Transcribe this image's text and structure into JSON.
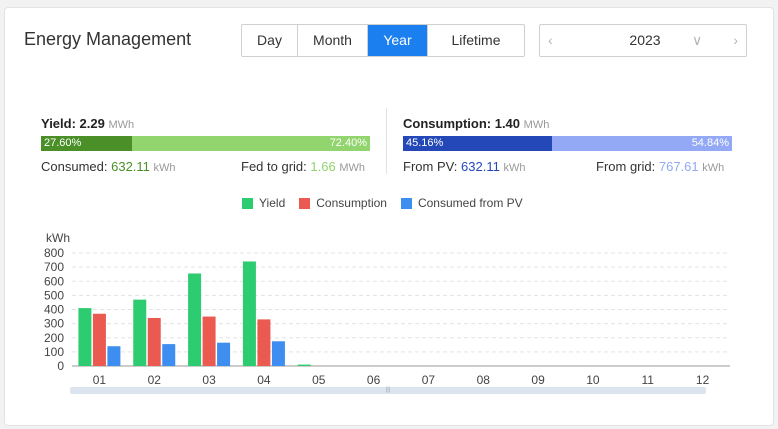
{
  "header": {
    "title": "Energy Management",
    "tabs": [
      {
        "label": "Day",
        "active": false
      },
      {
        "label": "Month",
        "active": false
      },
      {
        "label": "Year",
        "active": true
      },
      {
        "label": "Lifetime",
        "active": false
      }
    ],
    "year_picker": {
      "value": "2023",
      "prev_icon": "chevron-left-icon",
      "next_icon": "chevron-right-icon",
      "dropdown_icon": "chevron-down-icon"
    }
  },
  "yield": {
    "label": "Yield:",
    "value": "2.29",
    "unit": "MWh",
    "consumed_pct": "27.60%",
    "fed_pct": "72.40%",
    "consumed_fraction": 0.276,
    "consumed_label": "Consumed:",
    "consumed_value": "632.11",
    "consumed_unit": "kWh",
    "fed_label": "Fed to grid:",
    "fed_value": "1.66",
    "fed_unit": "MWh"
  },
  "consumption": {
    "label": "Consumption:",
    "value": "1.40",
    "unit": "MWh",
    "pv_pct": "45.16%",
    "grid_pct": "54.84%",
    "pv_fraction": 0.4516,
    "from_pv_label": "From PV:",
    "from_pv_value": "632.11",
    "from_pv_unit": "kWh",
    "from_grid_label": "From grid:",
    "from_grid_value": "767.61",
    "from_grid_unit": "kWh"
  },
  "colors": {
    "yield_dark": "#4a8f28",
    "yield_light": "#92d46e",
    "cons_dark": "#2448b8",
    "cons_light": "#93a9f5",
    "tab_active": "#1b7ff0",
    "series_yield": "#2ecc71",
    "series_consumption": "#eb5a50",
    "series_pv": "#3d8ef0"
  },
  "chart_data": {
    "type": "bar",
    "ylabel": "kWh",
    "ylim": [
      0,
      800
    ],
    "yticks": [
      0,
      100,
      200,
      300,
      400,
      500,
      600,
      700,
      800
    ],
    "categories": [
      "01",
      "02",
      "03",
      "04",
      "05",
      "06",
      "07",
      "08",
      "09",
      "10",
      "11",
      "12"
    ],
    "series": [
      {
        "name": "Yield",
        "color": "#2ecc71",
        "values": [
          410,
          470,
          655,
          740,
          10,
          0,
          0,
          0,
          0,
          0,
          0,
          0
        ]
      },
      {
        "name": "Consumption",
        "color": "#eb5a50",
        "values": [
          370,
          340,
          350,
          330,
          0,
          0,
          0,
          0,
          0,
          0,
          0,
          0
        ]
      },
      {
        "name": "Consumed from PV",
        "color": "#3d8ef0",
        "values": [
          140,
          155,
          165,
          175,
          0,
          0,
          0,
          0,
          0,
          0,
          0,
          0
        ]
      }
    ],
    "grid": true,
    "legend_position": "top-center"
  }
}
